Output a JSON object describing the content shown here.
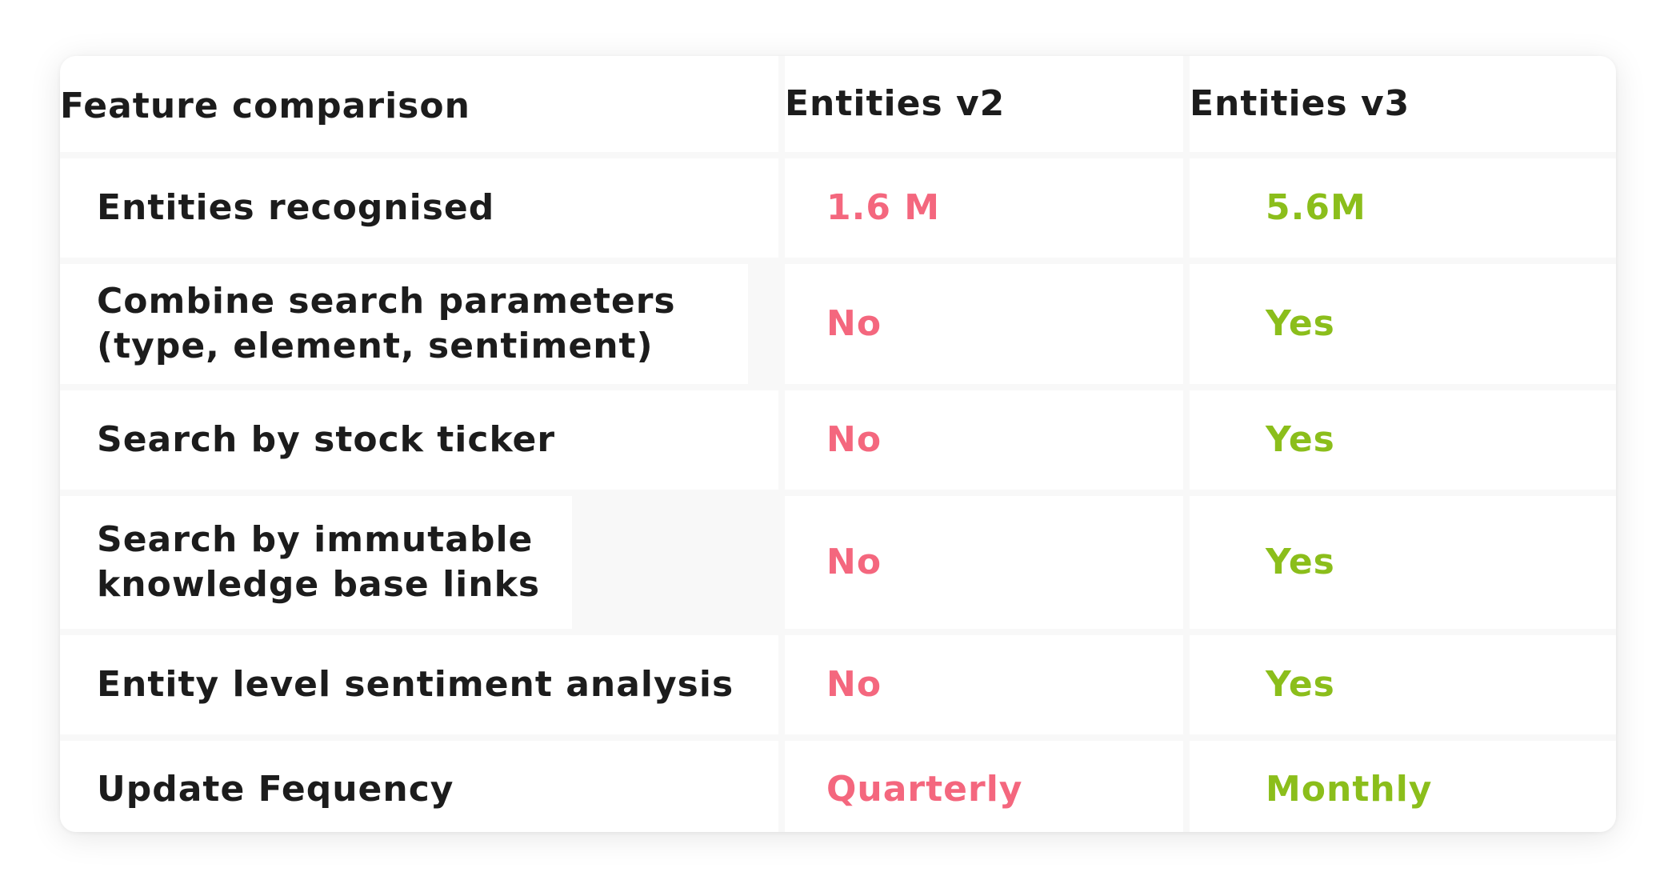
{
  "chart_data": {
    "type": "table",
    "columns": [
      "Feature comparison",
      "Entities v2",
      "Entities v3"
    ],
    "rows": [
      {
        "feature": "Entities recognised",
        "v2": "1.6 M",
        "v3": "5.6M"
      },
      {
        "feature": "Combine search parameters (type, element, sentiment)",
        "v2": "No",
        "v3": "Yes"
      },
      {
        "feature": "Search by stock ticker",
        "v2": "No",
        "v3": "Yes"
      },
      {
        "feature": "Search by immutable knowledge base links",
        "v2": "No",
        "v3": "Yes"
      },
      {
        "feature": "Entity level sentiment analysis",
        "v2": "No",
        "v3": "Yes"
      },
      {
        "feature": "Update Fequency",
        "v2": "Quarterly",
        "v3": "Monthly"
      }
    ]
  },
  "colors": {
    "negative": "#f4677e",
    "positive": "#8bbe1b",
    "text": "#1c1c1c"
  }
}
